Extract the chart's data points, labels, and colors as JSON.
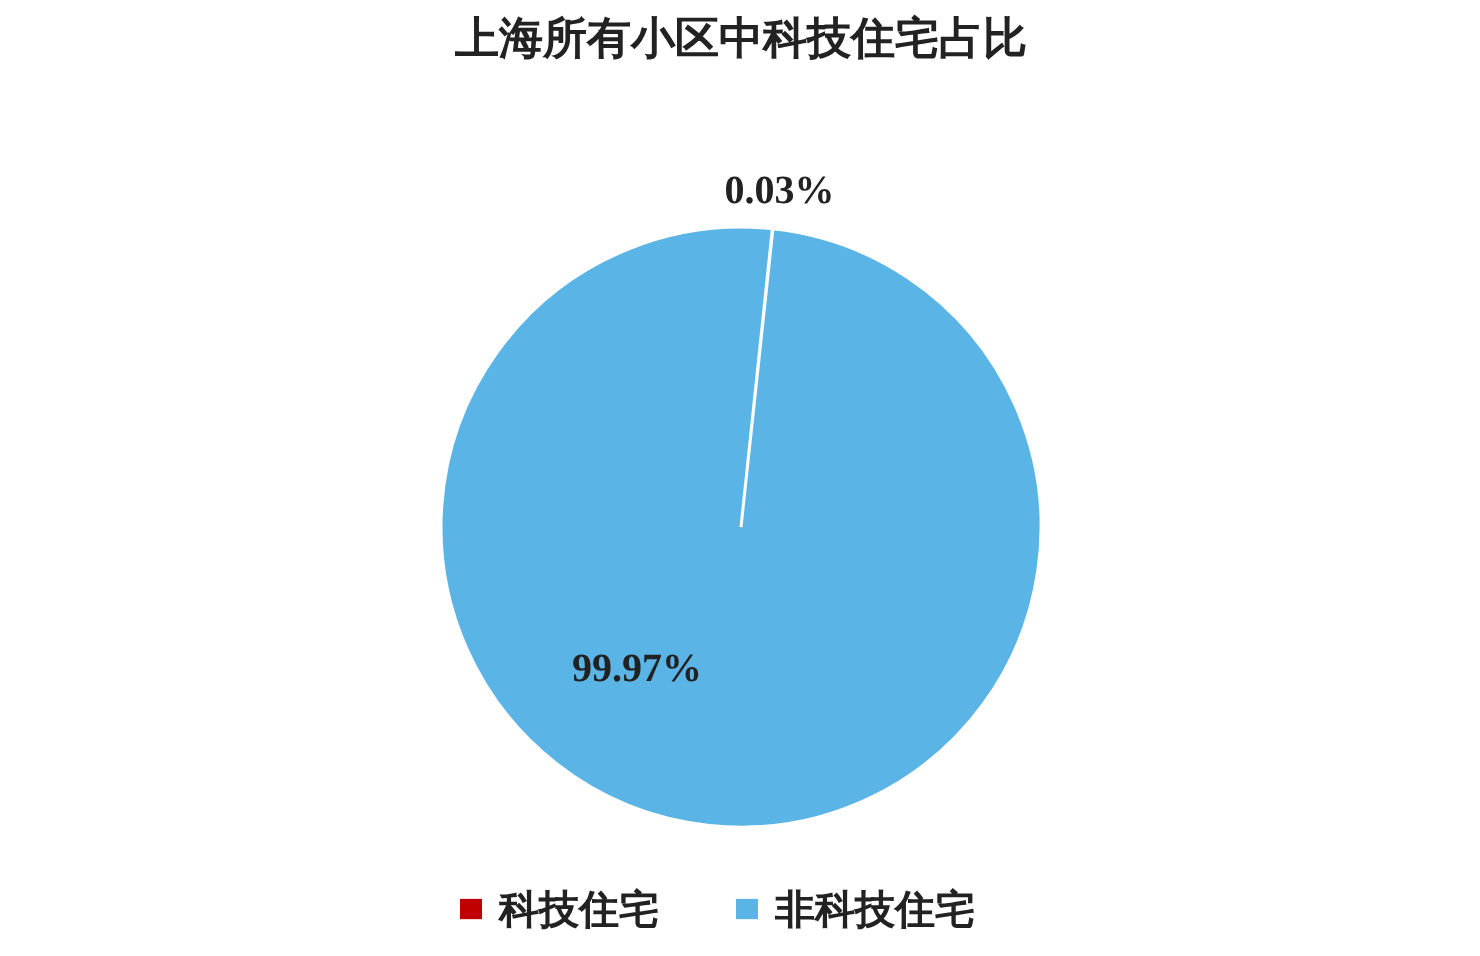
{
  "chart_data": {
    "type": "pie",
    "title": "上海所有小区中科技住宅占比",
    "categories": [
      "科技住宅",
      "非科技住宅"
    ],
    "values": [
      0.03,
      99.97
    ],
    "colors": [
      "#c00000",
      "#5ab4e5"
    ],
    "value_labels": [
      "0.03%",
      "99.97%"
    ],
    "legend": "bottom"
  }
}
